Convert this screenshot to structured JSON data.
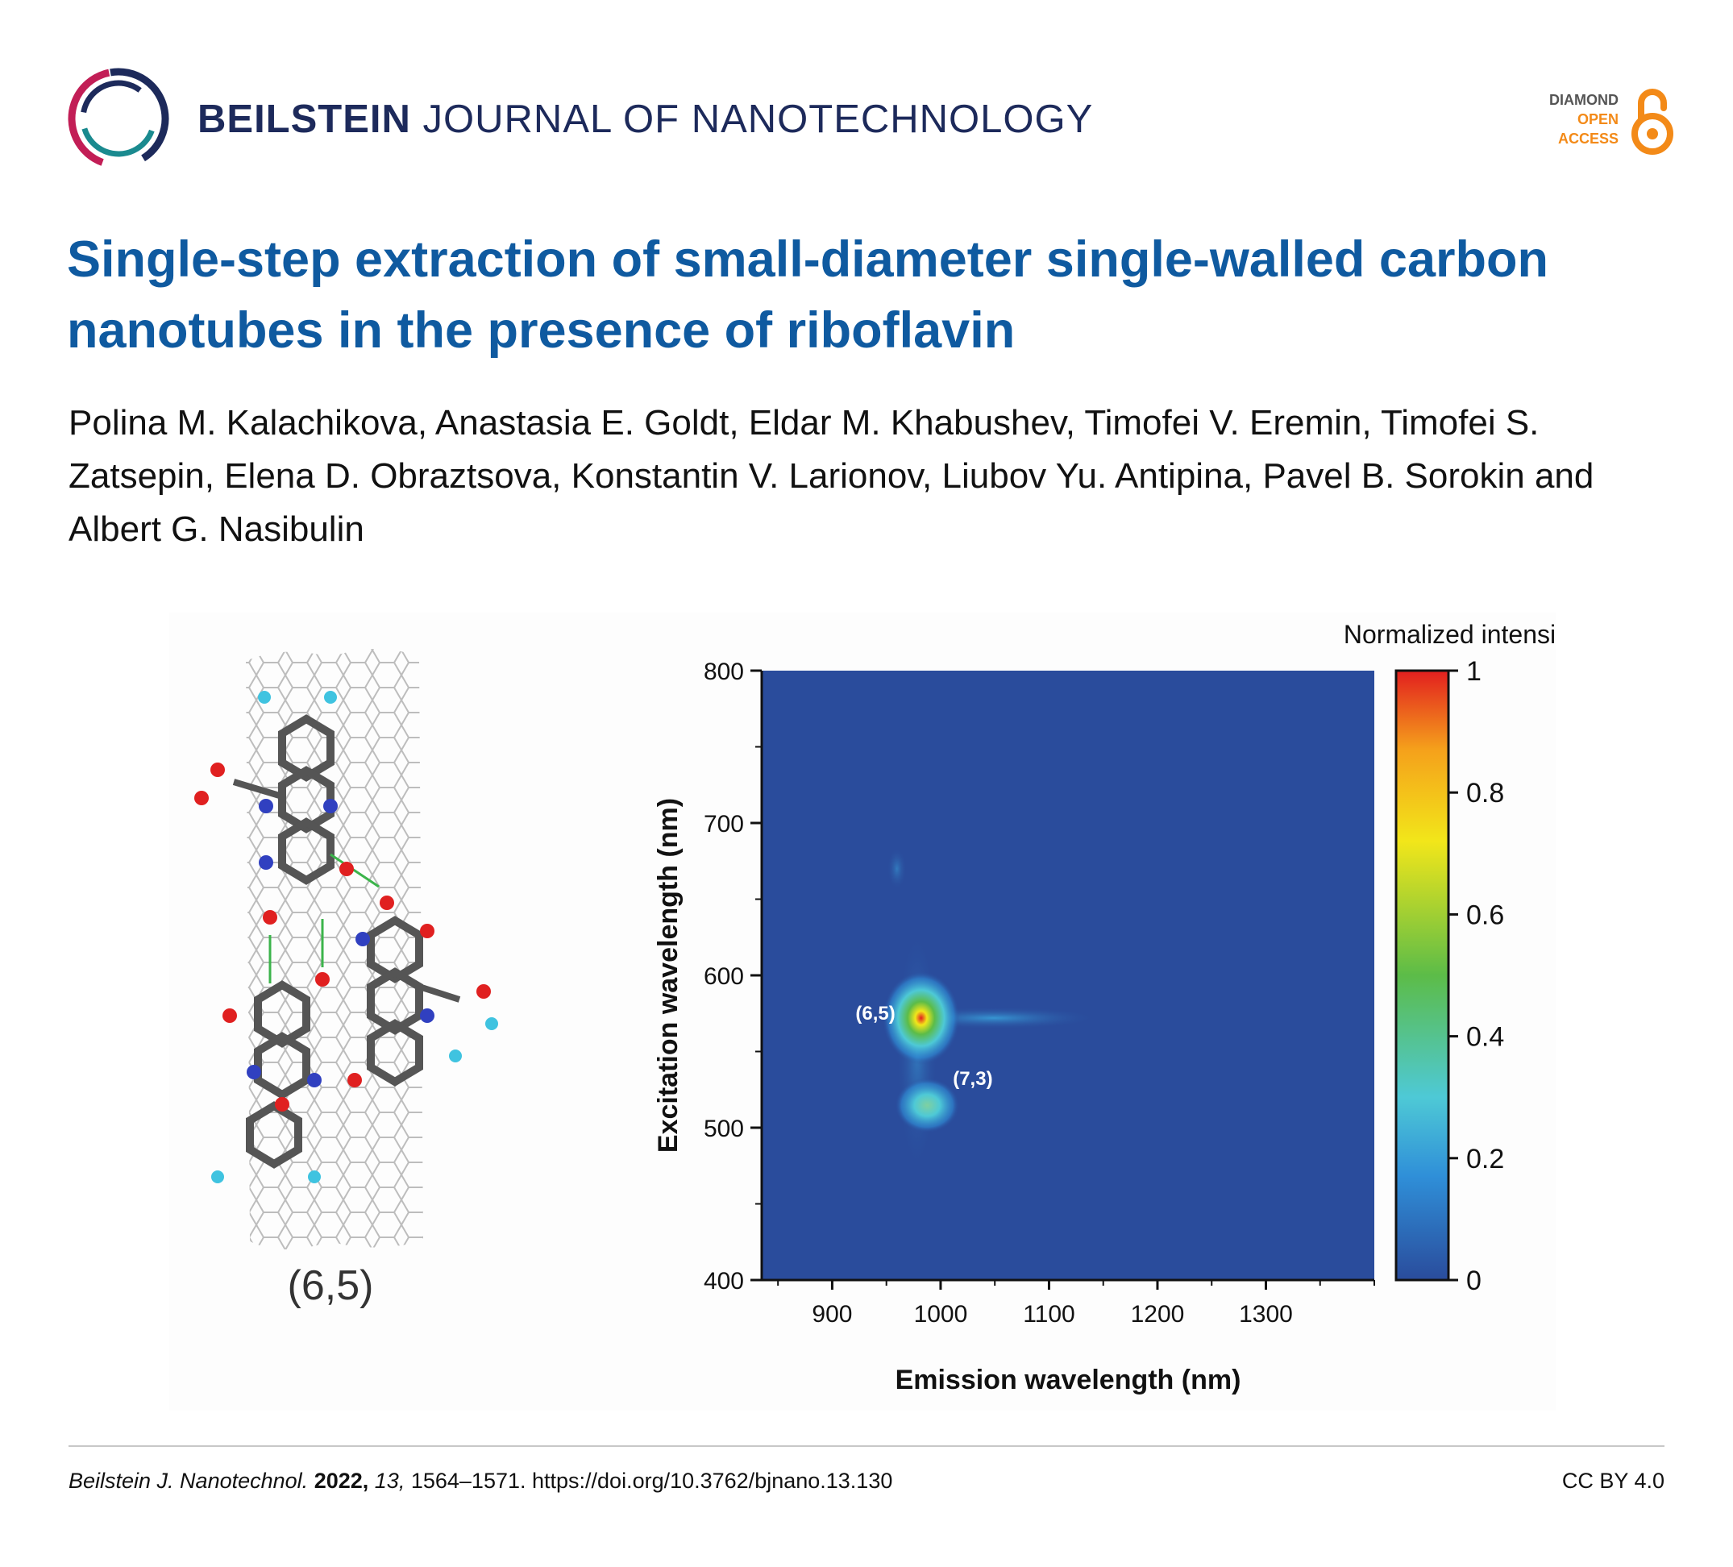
{
  "header": {
    "journal_brand": "BEILSTEIN",
    "journal_rest": "JOURNAL OF NANOTECHNOLOGY",
    "open_access": {
      "line1": "DIAMOND",
      "line2": "OPEN",
      "line3": "ACCESS",
      "icon": "open-access-lock-icon"
    },
    "logo_icon": "beilstein-circle-logo"
  },
  "article": {
    "title": "Single-step extraction of small-diameter single-walled carbon nanotubes in the presence of riboflavin",
    "authors": "Polina M. Kalachikova, Anastasia E. Goldt, Eldar M. Khabushev, Timofei V. Eremin, Timofei S. Zatsepin, Elena D. Obraztsova, Konstantin V. Larionov, Liubov Yu. Antipina, Pavel B. Sorokin and Albert G. Nasibulin"
  },
  "figure": {
    "molecule_label": "(6,5)",
    "chart_data": {
      "type": "heatmap",
      "title": "",
      "xlabel": "Emission wavelength (nm)",
      "ylabel": "Excitation wavelength (nm)",
      "xlim": [
        835,
        1400
      ],
      "ylim": [
        400,
        800
      ],
      "x_ticks": [
        900,
        1000,
        1100,
        1200,
        1300
      ],
      "y_ticks": [
        400,
        500,
        600,
        700,
        800
      ],
      "colorbar": {
        "title": "Normalized intensity",
        "ticks": [
          0,
          0.2,
          0.4,
          0.6,
          0.8,
          1
        ],
        "tick_labels": [
          "0",
          "0.2",
          "0.4",
          "0.6",
          "0.8",
          "1"
        ],
        "colors": [
          "#2a4c9c",
          "#2f8fd8",
          "#4ec9d6",
          "#5cbc48",
          "#f2e61a",
          "#f5a11b",
          "#e21f1f"
        ]
      },
      "background_value": 0.05,
      "peaks": [
        {
          "label": "(6,5)",
          "emission": 982,
          "excitation": 572,
          "intensity": 1.0,
          "label_side": "left"
        },
        {
          "label": "(7,3)",
          "emission": 995,
          "excitation": 520,
          "intensity": 0.35,
          "label_side": "right"
        }
      ]
    }
  },
  "footer": {
    "journal_abbrev": "Beilstein J. Nanotechnol.",
    "year": "2022,",
    "volume": "13,",
    "pages_doi": "1564–1571. https://doi.org/10.3762/bjnano.13.130",
    "license": "CC BY 4.0"
  }
}
